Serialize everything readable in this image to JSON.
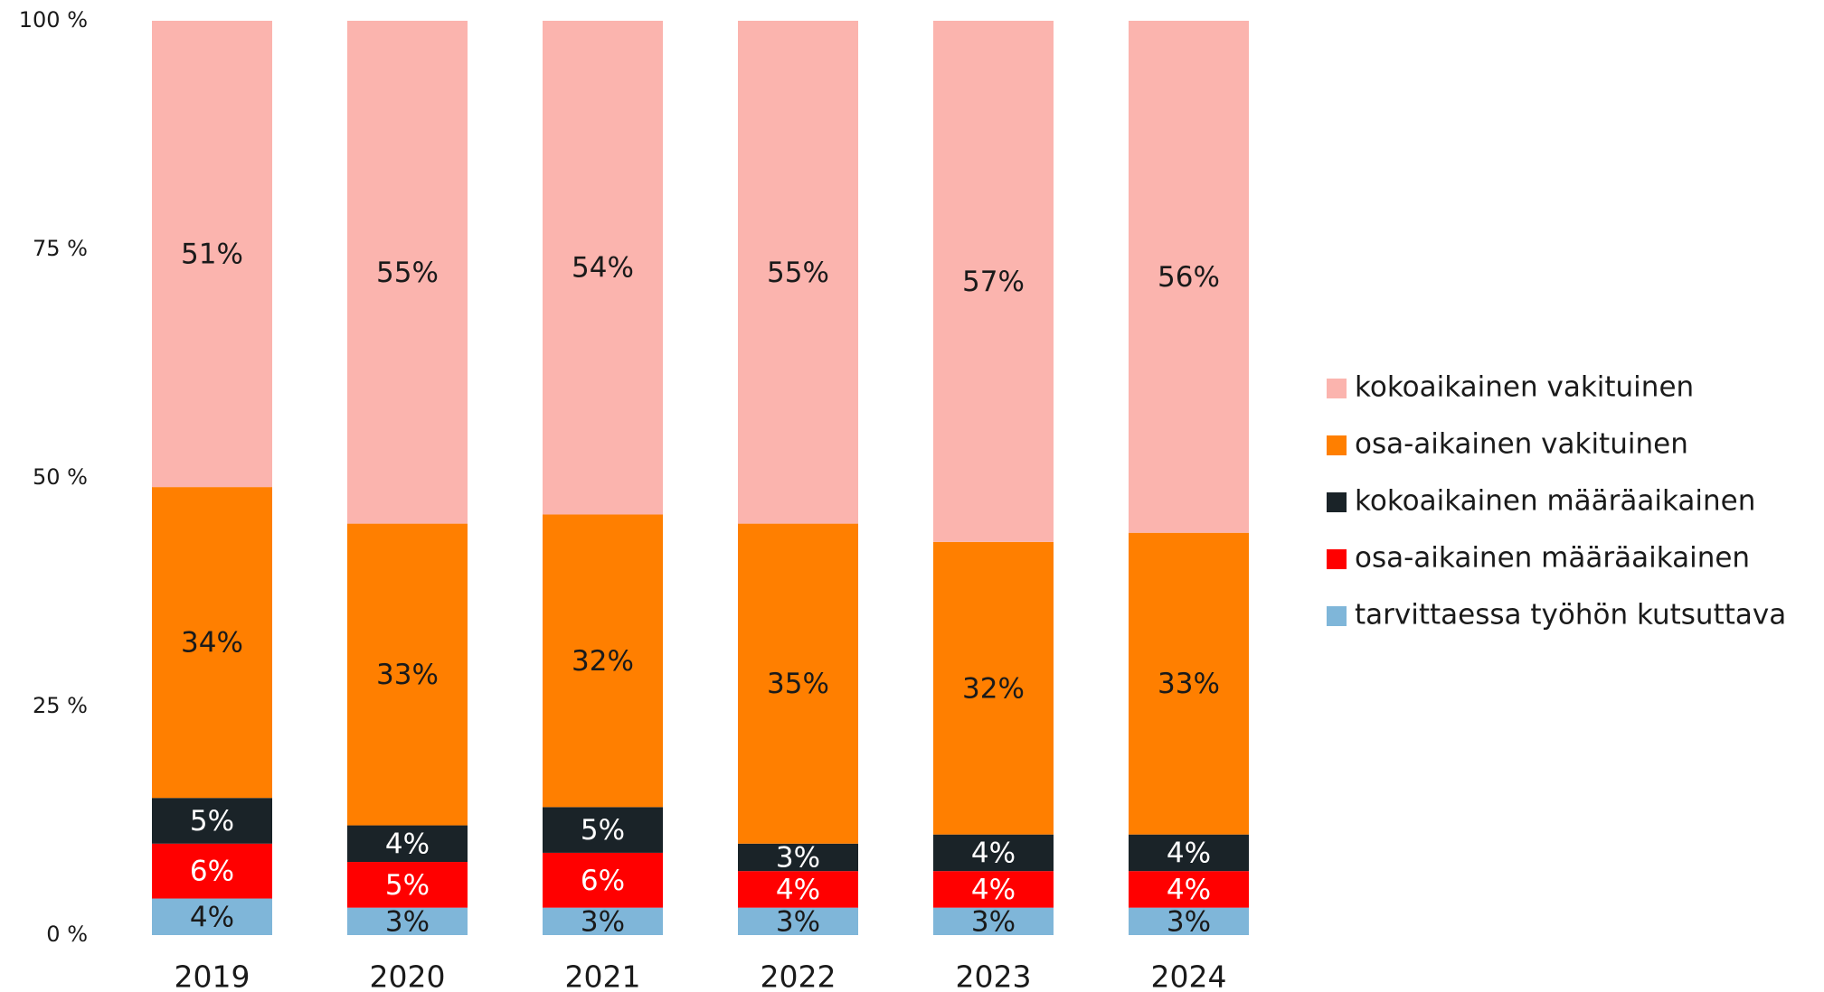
{
  "chart_data": {
    "type": "stacked_bar",
    "categories": [
      "2019",
      "2020",
      "2021",
      "2022",
      "2023",
      "2024"
    ],
    "series": [
      {
        "name": "tarvittaessa työhön kutsuttava",
        "color": "#7fb6d9",
        "values": [
          4,
          3,
          3,
          3,
          3,
          3
        ],
        "value_labels": [
          "4%",
          "3%",
          "3%",
          "3%",
          "3%",
          "3%"
        ]
      },
      {
        "name": "osa-aikainen määräaikainen",
        "color": "#ff0000",
        "values": [
          6,
          5,
          6,
          4,
          4,
          4
        ],
        "value_labels": [
          "6%",
          "5%",
          "6%",
          "4%",
          "4%",
          "4%"
        ]
      },
      {
        "name": "kokoaikainen määräaikainen",
        "color": "#1a2328",
        "values": [
          5,
          4,
          5,
          3,
          4,
          4
        ],
        "value_labels": [
          "5%",
          "4%",
          "5%",
          "3%",
          "4%",
          "4%"
        ]
      },
      {
        "name": "osa-aikainen vakituinen",
        "color": "#ff7f00",
        "values": [
          34,
          33,
          32,
          35,
          32,
          33
        ],
        "value_labels": [
          "34%",
          "33%",
          "32%",
          "35%",
          "32%",
          "33%"
        ]
      },
      {
        "name": "kokoaikainen vakituinen",
        "color": "#fbb4ae",
        "values": [
          51,
          55,
          54,
          55,
          57,
          56
        ],
        "value_labels": [
          "51%",
          "55%",
          "54%",
          "55%",
          "57%",
          "56%"
        ]
      }
    ],
    "ylim": [
      0,
      100
    ],
    "yticks": [
      {
        "value": 0,
        "label": "0 %"
      },
      {
        "value": 25,
        "label": "25 %"
      },
      {
        "value": 50,
        "label": "50 %"
      },
      {
        "value": 75,
        "label": "75 %"
      },
      {
        "value": 100,
        "label": "100 %"
      }
    ],
    "legend": "right"
  }
}
